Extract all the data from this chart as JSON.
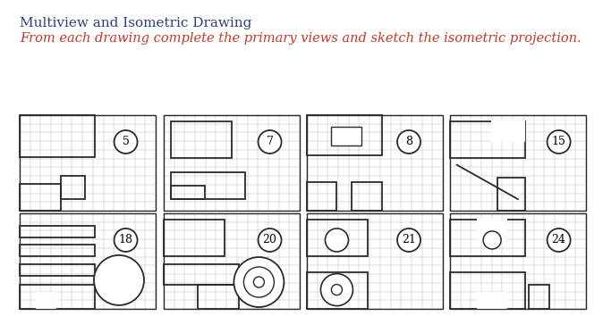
{
  "title": "Multiview and Isometric Drawing",
  "subtitle": "From each drawing complete the primary views and sketch the isometric projection.",
  "title_color": "#2c3e7a",
  "subtitle_color": "#c0392b",
  "background_color": "#ffffff",
  "problems": [
    {
      "number": "5",
      "row": 0,
      "col": 0
    },
    {
      "number": "7",
      "row": 0,
      "col": 1
    },
    {
      "number": "8",
      "row": 0,
      "col": 2
    },
    {
      "number": "15",
      "row": 0,
      "col": 3
    },
    {
      "number": "18",
      "row": 1,
      "col": 0
    },
    {
      "number": "20",
      "row": 1,
      "col": 1
    },
    {
      "number": "21",
      "row": 1,
      "col": 2
    },
    {
      "number": "24",
      "row": 1,
      "col": 3
    }
  ],
  "grid_color": "#b0b0b0",
  "line_color": "#2a2a2a",
  "cell_size": 0.1,
  "grid_cols": 13,
  "grid_rows": 11
}
